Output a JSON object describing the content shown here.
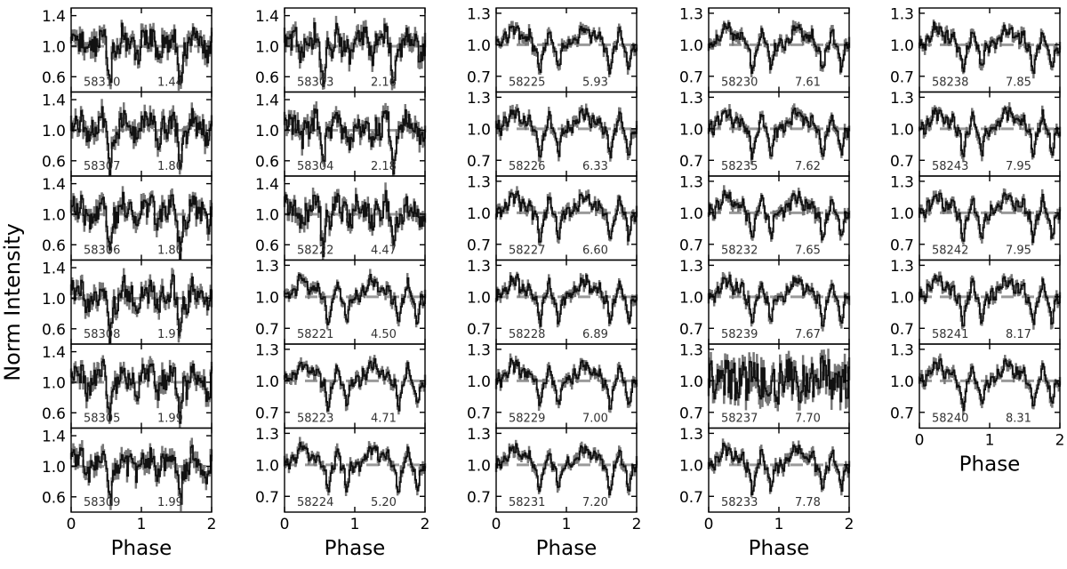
{
  "figure": {
    "ylabel": "Norm Intensity",
    "xlabel": "Phase",
    "reference_line_color": "#9a9a9a",
    "trace_color": "#111111",
    "errorbar_color": "#777777"
  },
  "chart_data": {
    "type": "line",
    "xlim": [
      0,
      2
    ],
    "x_ticks": [
      0,
      1,
      2
    ],
    "reference_level": 1.0,
    "columns": [
      {
        "ylim": [
          0.4,
          1.5
        ],
        "y_ticks": [
          0.6,
          1.0,
          1.4
        ],
        "panels": [
          {
            "mjd": "58310",
            "value": "1.44",
            "shape": "a"
          },
          {
            "mjd": "58307",
            "value": "1.80",
            "shape": "a"
          },
          {
            "mjd": "58306",
            "value": "1.80",
            "shape": "a"
          },
          {
            "mjd": "58308",
            "value": "1.97",
            "shape": "a"
          },
          {
            "mjd": "58305",
            "value": "1.99",
            "shape": "a"
          },
          {
            "mjd": "58309",
            "value": "1.99",
            "shape": "a"
          }
        ]
      },
      {
        "ylim_top4": [
          0.4,
          1.5
        ],
        "y_ticks_top4": [
          0.6,
          1.0,
          1.4
        ],
        "panels": [
          {
            "mjd": "58303",
            "value": "2.16",
            "shape": "a",
            "ylim": [
              0.4,
              1.5
            ],
            "y_ticks": [
              0.6,
              1.0,
              1.4
            ]
          },
          {
            "mjd": "58304",
            "value": "2.18",
            "shape": "a",
            "ylim": [
              0.4,
              1.5
            ],
            "y_ticks": [
              0.6,
              1.0,
              1.4
            ]
          },
          {
            "mjd": "58222",
            "value": "4.47",
            "shape": "a",
            "ylim": [
              0.4,
              1.5
            ],
            "y_ticks": [
              0.6,
              1.0,
              1.4
            ]
          },
          {
            "mjd": "58221",
            "value": "4.50",
            "shape": "b",
            "ylim": [
              0.55,
              1.35
            ],
            "y_ticks": [
              0.7,
              1.0,
              1.3
            ]
          },
          {
            "mjd": "58223",
            "value": "4.71",
            "shape": "b",
            "ylim": [
              0.55,
              1.35
            ],
            "y_ticks": [
              0.7,
              1.0,
              1.3
            ]
          },
          {
            "mjd": "58224",
            "value": "5.20",
            "shape": "b",
            "ylim": [
              0.55,
              1.35
            ],
            "y_ticks": [
              0.7,
              1.0,
              1.3
            ]
          }
        ]
      },
      {
        "ylim": [
          0.55,
          1.35
        ],
        "y_ticks": [
          0.7,
          1.0,
          1.3
        ],
        "panels": [
          {
            "mjd": "58225",
            "value": "5.93",
            "shape": "b"
          },
          {
            "mjd": "58226",
            "value": "6.33",
            "shape": "b"
          },
          {
            "mjd": "58227",
            "value": "6.60",
            "shape": "b"
          },
          {
            "mjd": "58228",
            "value": "6.89",
            "shape": "b"
          },
          {
            "mjd": "58229",
            "value": "7.00",
            "shape": "b"
          },
          {
            "mjd": "58231",
            "value": "7.20",
            "shape": "b"
          }
        ]
      },
      {
        "ylim": [
          0.55,
          1.35
        ],
        "y_ticks": [
          0.7,
          1.0,
          1.3
        ],
        "panels": [
          {
            "mjd": "58230",
            "value": "7.61",
            "shape": "b"
          },
          {
            "mjd": "58235",
            "value": "7.62",
            "shape": "b"
          },
          {
            "mjd": "58232",
            "value": "7.65",
            "shape": "b"
          },
          {
            "mjd": "58239",
            "value": "7.67",
            "shape": "b"
          },
          {
            "mjd": "58237",
            "value": "7.70",
            "shape": "c"
          },
          {
            "mjd": "58233",
            "value": "7.78",
            "shape": "b"
          }
        ]
      },
      {
        "ylim": [
          0.55,
          1.35
        ],
        "y_ticks": [
          0.7,
          1.0,
          1.3
        ],
        "panels": [
          {
            "mjd": "58238",
            "value": "7.85",
            "shape": "b"
          },
          {
            "mjd": "58243",
            "value": "7.95",
            "shape": "b"
          },
          {
            "mjd": "58242",
            "value": "7.95",
            "shape": "b"
          },
          {
            "mjd": "58241",
            "value": "8.17",
            "shape": "b"
          },
          {
            "mjd": "58240",
            "value": "8.31",
            "shape": "b"
          }
        ]
      }
    ],
    "grid": false,
    "legend": "none"
  }
}
